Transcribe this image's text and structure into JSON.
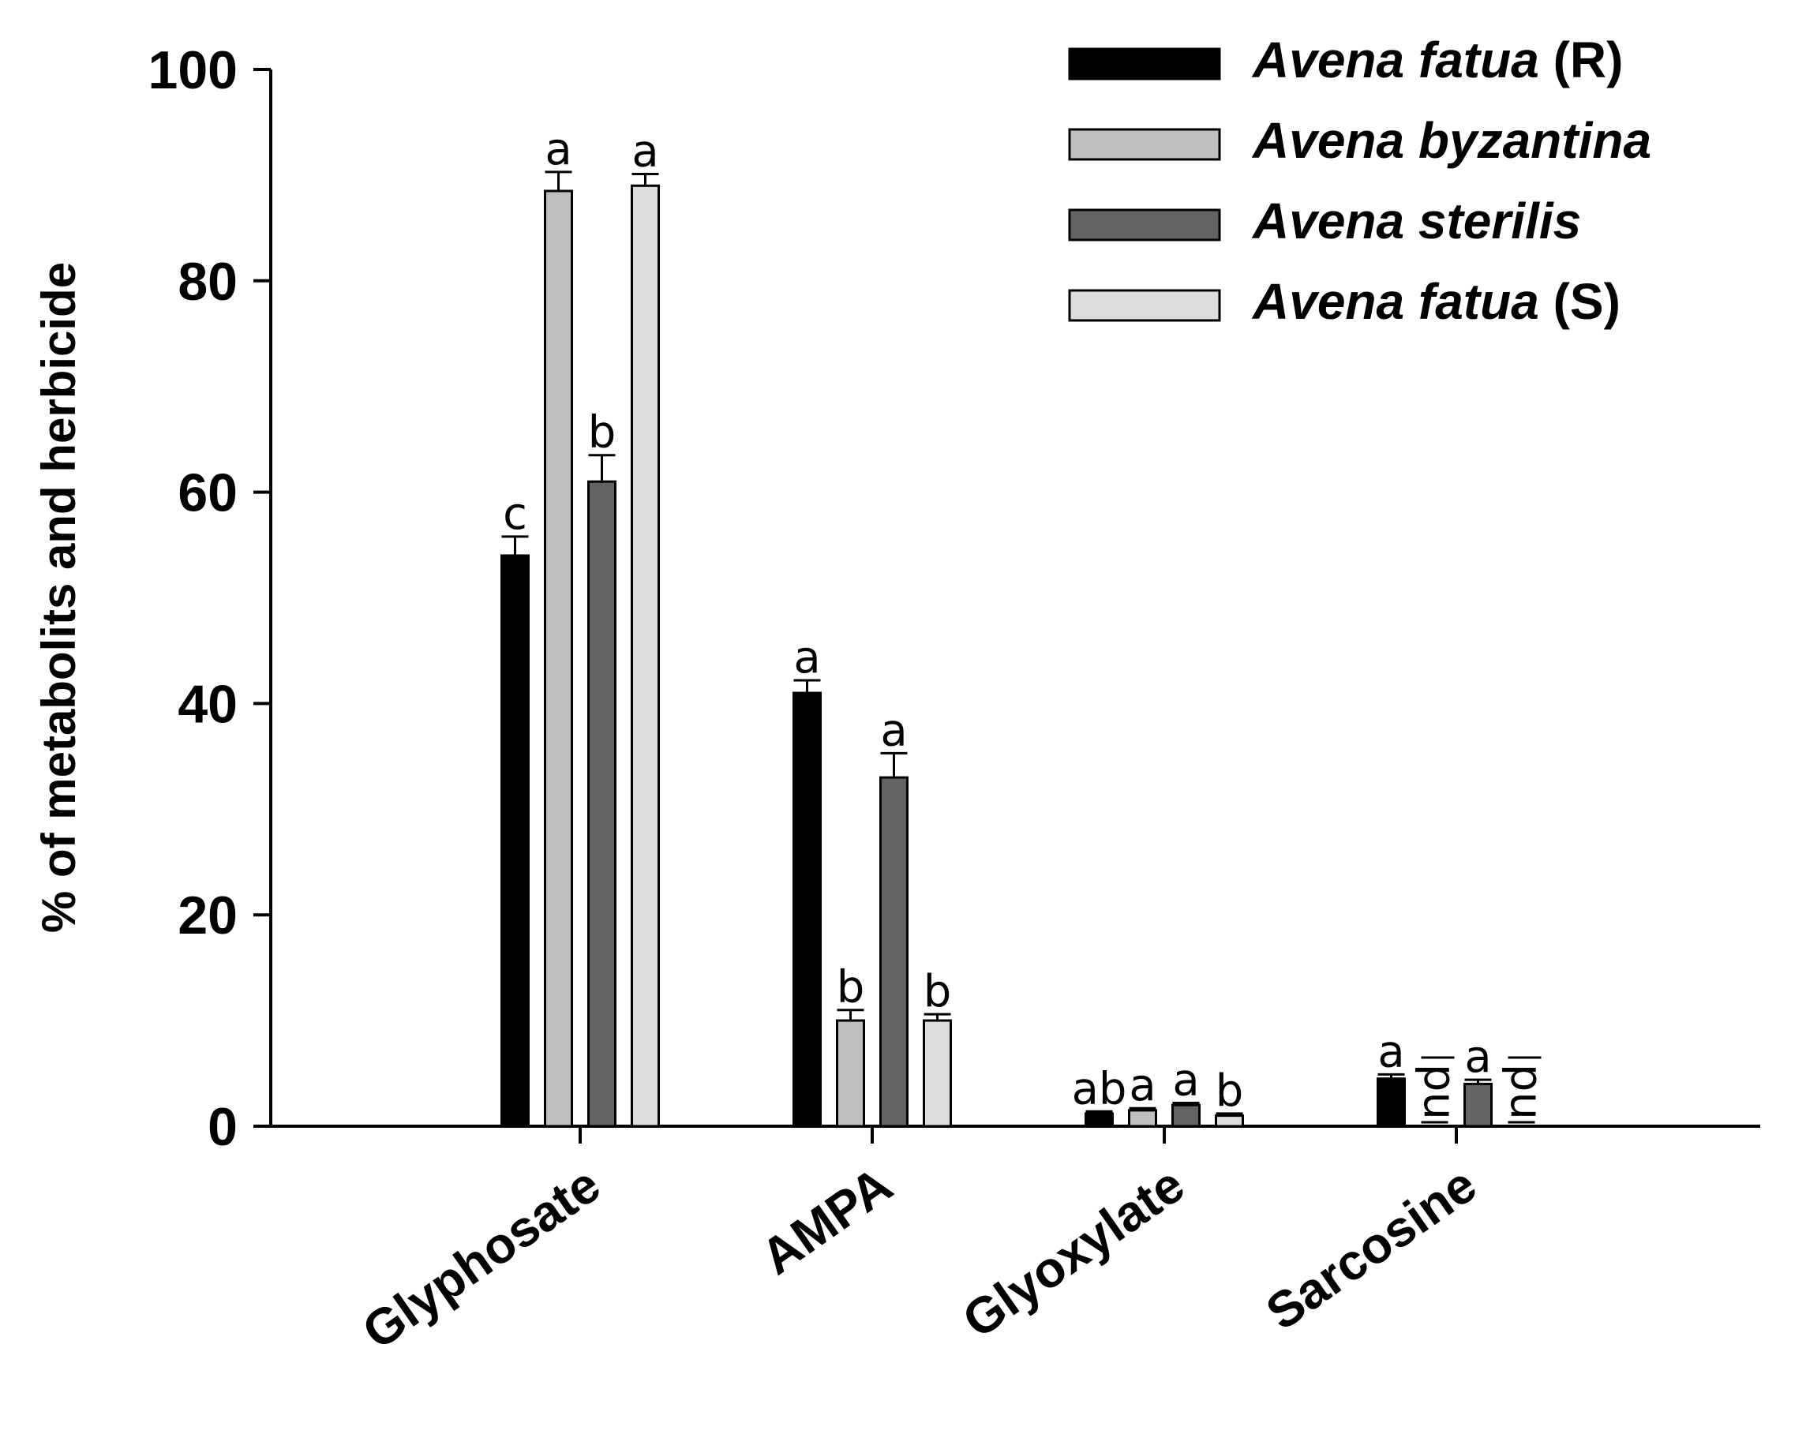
{
  "chart_data": {
    "type": "bar",
    "ylabel": "% of metabolits and herbicide",
    "xlabel": "",
    "ylim": [
      0,
      100
    ],
    "yticks": [
      0,
      20,
      40,
      60,
      80,
      100
    ],
    "categories": [
      "Glyphosate",
      "AMPA",
      "Glyoxylate",
      "Sarcosine"
    ],
    "series": [
      {
        "name": "Avena fatua",
        "suffix": "(R)",
        "color": "#000000",
        "values": [
          54,
          41,
          1.2,
          4.5
        ],
        "errors": [
          1.8,
          1.2,
          0.2,
          0.4
        ],
        "labels": [
          "c",
          "a",
          "ab",
          "a"
        ]
      },
      {
        "name": "Avena byzantina",
        "suffix": "",
        "color": "#bfbfbf",
        "values": [
          88.5,
          10,
          1.5,
          0
        ],
        "errors": [
          1.8,
          1.0,
          0.2,
          0
        ],
        "labels": [
          "a",
          "b",
          "a",
          "nd"
        ]
      },
      {
        "name": "Avena sterilis",
        "suffix": "",
        "color": "#636363",
        "values": [
          61,
          33,
          2.0,
          4.0
        ],
        "errors": [
          2.5,
          2.3,
          0.2,
          0.4
        ],
        "labels": [
          "b",
          "a",
          "a",
          "a"
        ]
      },
      {
        "name": "Avena fatua",
        "suffix": "(S)",
        "color": "#dddddd",
        "values": [
          89,
          10,
          1.0,
          0
        ],
        "errors": [
          1.1,
          0.6,
          0.2,
          0
        ],
        "labels": [
          "a",
          "b",
          "b",
          "nd"
        ]
      }
    ],
    "legend_position": "top-right",
    "grid": false
  }
}
